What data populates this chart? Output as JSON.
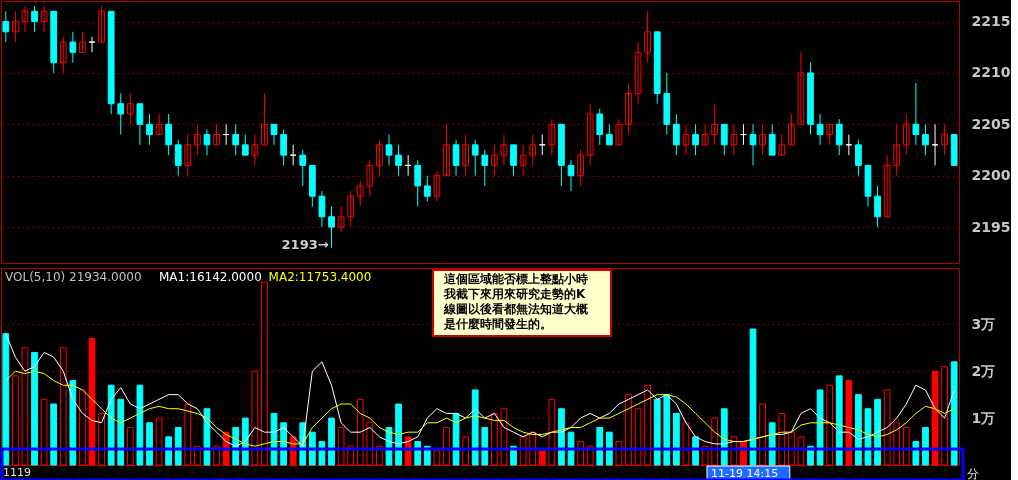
{
  "chart_data": [
    {
      "type": "candlestick",
      "categories": [
        null,
        null,
        null,
        null,
        null,
        null,
        null,
        null,
        null,
        null,
        null,
        null,
        null,
        null,
        null,
        null,
        null,
        null,
        null,
        null,
        null,
        null,
        null,
        null,
        null,
        null,
        null,
        null,
        null,
        null,
        null,
        null,
        null,
        null,
        null,
        null,
        null,
        null,
        null,
        null,
        null,
        null,
        null,
        null,
        null,
        null,
        null,
        null,
        null,
        null,
        null,
        null,
        null,
        null,
        null,
        null,
        null,
        null,
        null,
        null,
        null,
        null,
        null,
        null,
        null,
        null,
        null,
        null,
        null,
        null,
        null,
        null,
        null,
        null,
        null,
        null,
        null,
        null,
        null,
        null,
        null,
        null,
        null,
        null,
        null,
        null,
        null,
        null,
        null,
        null,
        null,
        null,
        null,
        null,
        null,
        null,
        null,
        null,
        null,
        null
      ],
      "ohlc": [
        [
          2215,
          2216,
          2213,
          2214
        ],
        [
          2214,
          2216,
          2213,
          2215
        ],
        [
          2215,
          2216.5,
          2214,
          2216
        ],
        [
          2216,
          2216.5,
          2214,
          2215
        ],
        [
          2215,
          2216.5,
          2214,
          2216
        ],
        [
          2216,
          2216,
          2210,
          2211
        ],
        [
          2211,
          2213.5,
          2210,
          2213
        ],
        [
          2213,
          2214,
          2211,
          2212
        ],
        [
          2212,
          2214,
          2212,
          2213
        ],
        [
          2213,
          2213.5,
          2212,
          2213
        ],
        [
          2213,
          2216.5,
          2213,
          2216
        ],
        [
          2216,
          2216,
          2206,
          2207
        ],
        [
          2207,
          2208,
          2204,
          2206
        ],
        [
          2206,
          2208,
          2205,
          2207
        ],
        [
          2207,
          2207,
          2203,
          2205
        ],
        [
          2205,
          2206,
          2203,
          2204
        ],
        [
          2204,
          2206,
          2204,
          2205
        ],
        [
          2205,
          2206,
          2202,
          2203
        ],
        [
          2203,
          2203.5,
          2200,
          2201
        ],
        [
          2201,
          2204,
          2200,
          2203
        ],
        [
          2203,
          2205,
          2202,
          2204
        ],
        [
          2204,
          2204.5,
          2202,
          2203
        ],
        [
          2203,
          2205,
          2203,
          2204
        ],
        [
          2204,
          2205,
          2203,
          2204
        ],
        [
          2204,
          2205,
          2202,
          2203
        ],
        [
          2203,
          2204,
          2202,
          2202
        ],
        [
          2202,
          2204,
          2201,
          2203
        ],
        [
          2203,
          2208,
          2203,
          2205
        ],
        [
          2205,
          2205,
          2203,
          2204
        ],
        [
          2204,
          2204.5,
          2201,
          2202
        ],
        [
          2202,
          2203,
          2201,
          2202
        ],
        [
          2202,
          2202.5,
          2199,
          2201
        ],
        [
          2201,
          2201,
          2197,
          2198
        ],
        [
          2198,
          2198.5,
          2195,
          2196
        ],
        [
          2196,
          2197,
          2193,
          2195
        ],
        [
          2195,
          2197,
          2194.5,
          2196
        ],
        [
          2196,
          2198.5,
          2195,
          2198
        ],
        [
          2198,
          2199.5,
          2197,
          2199
        ],
        [
          2199,
          2201.5,
          2198,
          2201
        ],
        [
          2201,
          2203.5,
          2200,
          2203
        ],
        [
          2203,
          2204,
          2201,
          2202
        ],
        [
          2202,
          2203,
          2200,
          2201
        ],
        [
          2201,
          2202,
          2200,
          2201
        ],
        [
          2201,
          2201.5,
          2197,
          2199
        ],
        [
          2199,
          2200,
          2197.5,
          2198
        ],
        [
          2198,
          2200.5,
          2197.5,
          2200
        ],
        [
          2200,
          2205,
          2200,
          2203
        ],
        [
          2203,
          2203.5,
          2200,
          2201
        ],
        [
          2201,
          2204,
          2200,
          2203
        ],
        [
          2203,
          2203.5,
          2200,
          2202
        ],
        [
          2202,
          2202.5,
          2199,
          2201
        ],
        [
          2201,
          2203,
          2200,
          2202
        ],
        [
          2202,
          2204,
          2201,
          2203
        ],
        [
          2203,
          2203,
          2200,
          2201
        ],
        [
          2201,
          2203,
          2200,
          2202
        ],
        [
          2202,
          2204,
          2201,
          2203
        ],
        [
          2203,
          2204,
          2202,
          2203
        ],
        [
          2203,
          2205.5,
          2202,
          2205
        ],
        [
          2205,
          2205,
          2199,
          2201
        ],
        [
          2201,
          2201.5,
          2198.5,
          2200
        ],
        [
          2200,
          2202.5,
          2199,
          2202
        ],
        [
          2202,
          2207,
          2201,
          2206
        ],
        [
          2206,
          2206.5,
          2203,
          2204
        ],
        [
          2204,
          2205,
          2203,
          2203
        ],
        [
          2203,
          2205.5,
          2203,
          2205
        ],
        [
          2205,
          2209,
          2204,
          2208
        ],
        [
          2208,
          2213,
          2207,
          2212
        ],
        [
          2212,
          2216,
          2211,
          2214
        ],
        [
          2214,
          2214,
          2207,
          2208
        ],
        [
          2208,
          2210,
          2204,
          2205
        ],
        [
          2205,
          2206,
          2202,
          2203
        ],
        [
          2203,
          2205,
          2202,
          2204
        ],
        [
          2204,
          2205,
          2202,
          2203
        ],
        [
          2203,
          2205,
          2203,
          2204
        ],
        [
          2204,
          2207,
          2203,
          2205
        ],
        [
          2205,
          2205,
          2202,
          2203
        ],
        [
          2203,
          2205,
          2202,
          2204
        ],
        [
          2204,
          2205,
          2203,
          2204
        ],
        [
          2204,
          2205,
          2201,
          2203
        ],
        [
          2203,
          2205,
          2202,
          2204
        ],
        [
          2204,
          2205,
          2202,
          2202
        ],
        [
          2202,
          2204,
          2202,
          2203
        ],
        [
          2203,
          2206,
          2203,
          2205
        ],
        [
          2205,
          2212,
          2205,
          2210
        ],
        [
          2210,
          2211,
          2204,
          2205
        ],
        [
          2205,
          2206,
          2203,
          2204
        ],
        [
          2204,
          2205,
          2203,
          2205
        ],
        [
          2205,
          2205.5,
          2202,
          2203
        ],
        [
          2203,
          2204,
          2202,
          2203
        ],
        [
          2203,
          2203.5,
          2200,
          2201
        ],
        [
          2201,
          2201,
          2197,
          2198
        ],
        [
          2198,
          2199,
          2195,
          2196
        ],
        [
          2196,
          2202,
          2196,
          2201
        ],
        [
          2201,
          2205,
          2200,
          2203
        ],
        [
          2203,
          2206,
          2202,
          2205
        ],
        [
          2205,
          2209,
          2203,
          2204
        ],
        [
          2204,
          2205,
          2202,
          2203
        ],
        [
          2203,
          2205,
          2201,
          2203
        ],
        [
          2203,
          2205,
          2202,
          2204
        ],
        [
          2204,
          2204,
          2201,
          2201
        ]
      ],
      "colors": [
        "#00ffff",
        "#ff0000",
        "#ff0000",
        "#00ffff",
        "#ff0000",
        "#00ffff",
        "#ff0000",
        "#00ffff",
        "#ff0000",
        "#ffffff",
        "#ff0000",
        "#00ffff",
        "#00ffff",
        "#ff0000",
        "#00ffff",
        "#00ffff",
        "#ff0000",
        "#00ffff",
        "#00ffff",
        "#ff0000",
        "#ff0000",
        "#00ffff",
        "#ff0000",
        "#ffffff",
        "#00ffff",
        "#00ffff",
        "#ff0000",
        "#ff0000",
        "#00ffff",
        "#00ffff",
        "#ffffff",
        "#00ffff",
        "#00ffff",
        "#00ffff",
        "#00ffff",
        "#ff0000",
        "#ff0000",
        "#ff0000",
        "#ff0000",
        "#ff0000",
        "#00ffff",
        "#00ffff",
        "#ffffff",
        "#00ffff",
        "#00ffff",
        "#ff0000",
        "#ff0000",
        "#00ffff",
        "#ff0000",
        "#00ffff",
        "#00ffff",
        "#ff0000",
        "#ff0000",
        "#00ffff",
        "#ff0000",
        "#ff0000",
        "#ffffff",
        "#ff0000",
        "#00ffff",
        "#00ffff",
        "#ff0000",
        "#ff0000",
        "#00ffff",
        "#00ffff",
        "#ff0000",
        "#ff0000",
        "#ff0000",
        "#ff0000",
        "#00ffff",
        "#00ffff",
        "#00ffff",
        "#ff0000",
        "#00ffff",
        "#ff0000",
        "#ff0000",
        "#00ffff",
        "#ff0000",
        "#ffffff",
        "#00ffff",
        "#ff0000",
        "#00ffff",
        "#ff0000",
        "#ff0000",
        "#ff0000",
        "#00ffff",
        "#00ffff",
        "#ff0000",
        "#00ffff",
        "#ffffff",
        "#00ffff",
        "#00ffff",
        "#00ffff",
        "#ff0000",
        "#ff0000",
        "#ff0000",
        "#00ffff",
        "#00ffff",
        "#ffffff",
        "#ff0000",
        "#00ffff"
      ],
      "ylim": [
        2191.5,
        2217
      ],
      "yticks": [
        2195,
        2200,
        2205,
        2210,
        2215
      ],
      "grid": "y",
      "tick_labels": "y",
      "annotations": [
        "2193→"
      ]
    },
    {
      "type": "bar",
      "title": "VOL(5,10) 21934.0000",
      "categories": [
        null,
        null,
        null,
        null,
        null,
        null,
        null,
        null,
        null,
        null,
        null,
        null,
        null,
        null,
        null,
        null,
        null,
        null,
        null,
        null,
        null,
        null,
        null,
        null,
        null,
        null,
        null,
        null,
        null,
        null,
        null,
        null,
        null,
        null,
        null,
        null,
        null,
        null,
        null,
        null,
        null,
        null,
        null,
        null,
        null,
        null,
        null,
        null,
        null,
        null,
        null,
        null,
        null,
        null,
        null,
        null,
        null,
        null,
        null,
        null,
        null,
        null,
        null,
        null,
        null,
        null,
        null,
        null,
        null,
        null,
        null,
        null,
        null,
        null,
        null,
        null,
        null,
        null,
        null,
        null,
        null,
        null,
        null,
        null,
        null,
        null,
        null,
        null,
        null,
        null,
        null,
        null,
        null,
        null,
        null,
        null,
        null,
        null,
        null,
        null
      ],
      "series": [
        {
          "type": "bar",
          "colors": [
            "#00ffff",
            "#ff0000",
            "#ff0000",
            "#00ffff",
            "#ff0000",
            "#00ffff",
            "#ff0000",
            "#00ffff",
            "#ff0000",
            "#ff0000",
            "#ff0000",
            "#00ffff",
            "#00ffff",
            "#ff0000",
            "#00ffff",
            "#00ffff",
            "#ff0000",
            "#00ffff",
            "#00ffff",
            "#ff0000",
            "#ff0000",
            "#00ffff",
            "#ff0000",
            "#ff0000",
            "#00ffff",
            "#00ffff",
            "#ff0000",
            "#ff0000",
            "#00ffff",
            "#00ffff",
            "#ff0000",
            "#00ffff",
            "#00ffff",
            "#00ffff",
            "#00ffff",
            "#ff0000",
            "#ff0000",
            "#ff0000",
            "#ff0000",
            "#ff0000",
            "#00ffff",
            "#00ffff",
            "#ff0000",
            "#00ffff",
            "#00ffff",
            "#ff0000",
            "#ff0000",
            "#00ffff",
            "#ff0000",
            "#00ffff",
            "#00ffff",
            "#ff0000",
            "#ff0000",
            "#00ffff",
            "#ff0000",
            "#ff0000",
            "#ff0000",
            "#ff0000",
            "#00ffff",
            "#00ffff",
            "#ff0000",
            "#ff0000",
            "#00ffff",
            "#00ffff",
            "#ff0000",
            "#ff0000",
            "#ff0000",
            "#ff0000",
            "#00ffff",
            "#00ffff",
            "#00ffff",
            "#ff0000",
            "#00ffff",
            "#ff0000",
            "#ff0000",
            "#00ffff",
            "#ff0000",
            "#ff0000",
            "#00ffff",
            "#ff0000",
            "#00ffff",
            "#ff0000",
            "#ff0000",
            "#ff0000",
            "#00ffff",
            "#00ffff",
            "#ff0000",
            "#00ffff",
            "#ff0000",
            "#00ffff",
            "#00ffff",
            "#00ffff",
            "#ff0000",
            "#ff0000",
            "#ff0000",
            "#00ffff",
            "#00ffff",
            "#ff0000",
            "#ff0000",
            "#00ffff"
          ],
          "values": [
            2.8,
            1.9,
            2.5,
            2.4,
            1.4,
            1.3,
            2.5,
            1.8,
            1.6,
            2.7,
            1.1,
            1.7,
            1.4,
            0.8,
            1.7,
            0.9,
            1.0,
            0.6,
            0.8,
            1.3,
            0.4,
            1.2,
            0.4,
            0.7,
            0.8,
            1.0,
            2.0,
            3.9,
            1.1,
            0.9,
            0.6,
            0.9,
            0.7,
            0.5,
            1.0,
            0.8,
            0.4,
            1.4,
            0.9,
            0.4,
            0.8,
            1.3,
            0.6,
            0.5,
            0.4,
            0.3,
            0.8,
            1.1,
            0.6,
            1.6,
            0.8,
            1.1,
            1.2,
            0.4,
            0.6,
            0.7,
            0.3,
            1.4,
            1.2,
            0.7,
            0.5,
            0.4,
            0.8,
            0.7,
            0.5,
            1.5,
            1.2,
            1.7,
            1.4,
            1.5,
            1.1,
            0.9,
            0.6,
            0.4,
            1.0,
            1.2,
            0.6,
            0.5,
            2.9,
            1.3,
            0.9,
            1.1,
            0.7,
            0.6,
            0.4,
            1.6,
            1.7,
            1.9,
            1.8,
            1.5,
            1.2,
            1.4,
            1.6,
            0.9,
            0.8,
            0.5,
            0.8,
            2.0,
            2.1,
            2.2
          ]
        },
        {
          "type": "line",
          "name": "MA1:16142.0000",
          "color": "#ffffff",
          "values": [
            2.8,
            2.3,
            2.0,
            2.1,
            2.4,
            2.3,
            2.0,
            1.4,
            1.1,
            0.95,
            0.9,
            1.4,
            1.65,
            1.3,
            1.2,
            1.3,
            1.4,
            1.5,
            1.5,
            1.3,
            1.2,
            0.9,
            0.7,
            0.5,
            0.4,
            0.5,
            0.8,
            0.7,
            0.7,
            0.8,
            0.6,
            0.4,
            2.0,
            2.2,
            1.7,
            0.9,
            0.7,
            0.7,
            0.8,
            0.6,
            0.5,
            0.45,
            0.5,
            0.6,
            1.0,
            1.2,
            1.1,
            1.1,
            1.0,
            1.2,
            1.0,
            1.1,
            0.8,
            0.7,
            0.6,
            0.7,
            0.6,
            0.7,
            0.7,
            0.8,
            1.0,
            1.1,
            1.0,
            1.1,
            1.3,
            1.4,
            1.5,
            1.6,
            1.4,
            1.5,
            1.3,
            0.9,
            0.6,
            0.5,
            0.45,
            0.45,
            0.5,
            0.5,
            0.55,
            0.6,
            0.65,
            0.65,
            0.7,
            1.1,
            1.2,
            1.0,
            0.9,
            0.7,
            0.7,
            0.55,
            0.6,
            0.7,
            0.8,
            1.0,
            1.3,
            1.7,
            1.6,
            1.2,
            1.0,
            1.6
          ]
        },
        {
          "type": "line",
          "name": "MA2:11753.4000",
          "color": "#ffff00",
          "values": [
            1.8,
            2.0,
            1.95,
            2.0,
            1.95,
            1.8,
            1.7,
            1.7,
            1.6,
            1.4,
            1.2,
            1.0,
            0.9,
            1.0,
            1.1,
            1.2,
            1.25,
            1.2,
            1.2,
            1.15,
            1.1,
            1.0,
            0.8,
            0.65,
            0.55,
            0.45,
            0.4,
            0.45,
            0.5,
            0.5,
            0.45,
            0.45,
            0.8,
            1.0,
            1.2,
            1.3,
            1.3,
            1.1,
            1.0,
            0.8,
            0.7,
            0.65,
            0.7,
            0.7,
            0.9,
            0.9,
            1.0,
            0.9,
            1.0,
            1.05,
            1.0,
            0.95,
            0.95,
            0.8,
            0.7,
            0.65,
            0.65,
            0.7,
            0.75,
            0.8,
            0.8,
            0.9,
            1.0,
            1.0,
            1.1,
            1.2,
            1.3,
            1.4,
            1.5,
            1.5,
            1.45,
            1.3,
            1.1,
            0.9,
            0.7,
            0.55,
            0.5,
            0.5,
            0.55,
            0.6,
            0.65,
            0.7,
            0.7,
            0.85,
            0.9,
            0.9,
            0.9,
            0.85,
            0.8,
            0.75,
            0.65,
            0.6,
            0.65,
            0.75,
            0.9,
            1.1,
            1.25,
            1.2,
            1.1,
            1.2
          ]
        }
      ],
      "ylim": [
        0,
        4.2
      ],
      "yticks": [
        {
          "value": 1,
          "label": "1万"
        },
        {
          "value": 2,
          "label": "2万"
        },
        {
          "value": 3,
          "label": "3万"
        }
      ],
      "grid": "y",
      "legend": "top left",
      "tick_labels": "y",
      "annotations": [
        "這個區域能否標上整點小時我截下來用來研究走勢的K線圖以後看都無法知道大概是什麼時間發生的。",
        "1119",
        "11-19 14:15",
        "分"
      ]
    }
  ]
}
